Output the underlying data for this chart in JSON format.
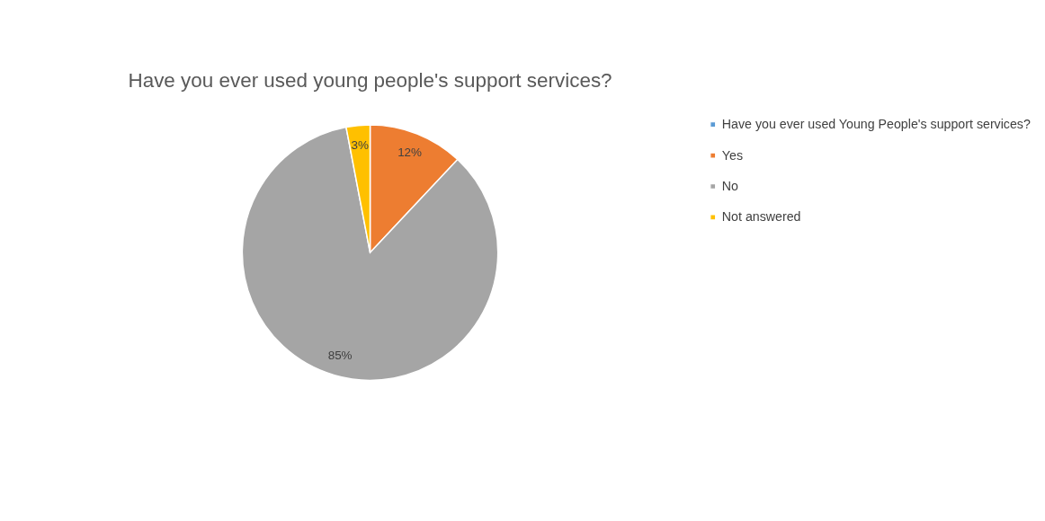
{
  "chart_data": {
    "type": "pie",
    "title": "Have you ever used young people's support services?",
    "categories": [
      "Have you ever used Young People's support services?",
      "Yes",
      "No",
      "Not answered"
    ],
    "values": [
      0,
      12,
      85,
      3
    ],
    "colors": [
      "#5b9bd5",
      "#ed7d31",
      "#a5a5a5",
      "#ffc000"
    ],
    "value_labels": [
      null,
      "12%",
      "85%",
      "3%"
    ],
    "legend": "right"
  }
}
